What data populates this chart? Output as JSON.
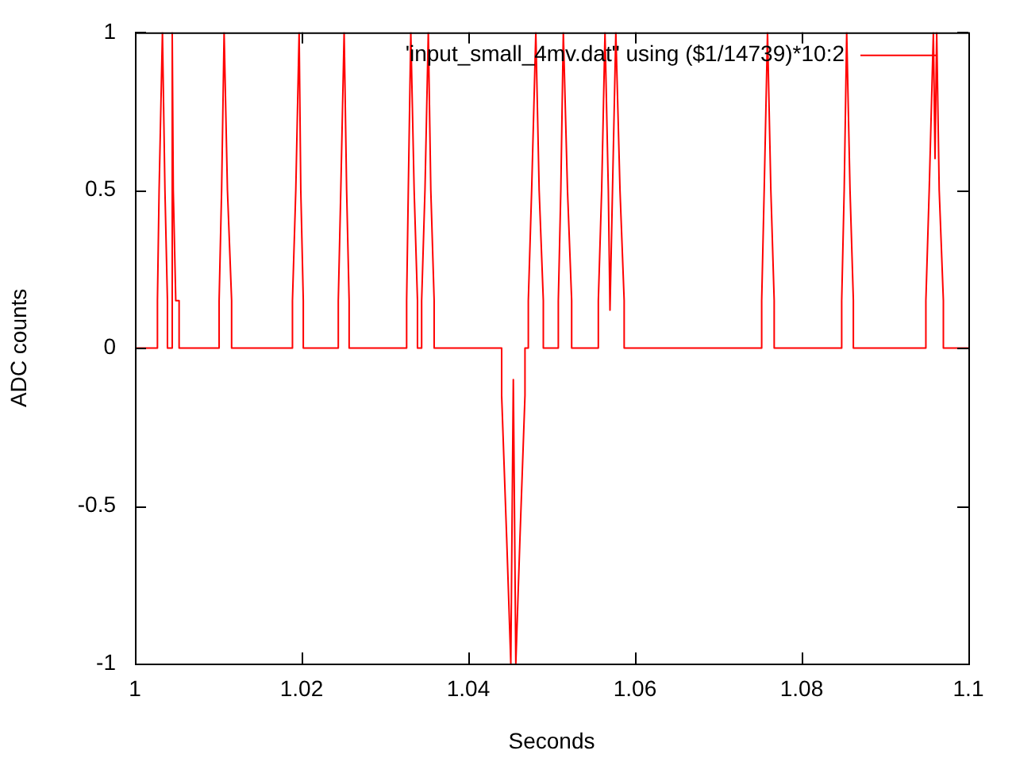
{
  "chart_data": {
    "type": "line",
    "xlabel": "Seconds",
    "ylabel": "ADC counts",
    "xlim": [
      1,
      1.1
    ],
    "xticks": [
      1,
      1.02,
      1.04,
      1.06,
      1.08,
      1.1
    ],
    "ylim": [
      -1,
      1
    ],
    "yticks": [
      -1,
      -0.5,
      0,
      0.5,
      1
    ],
    "grid": false,
    "legend": "top right",
    "marker": "none",
    "line_style": "solid",
    "series": [
      {
        "name": "'input_small_4mv.dat\" using ($1/14739)*10:2",
        "color": "#ff0000",
        "x": [
          1,
          1.0027,
          1.0027,
          1.0029,
          1.0033,
          1.0036,
          1.0039,
          1.0039,
          1.0044,
          1.00445,
          1.0045,
          1.0046,
          1.0049,
          1.0053,
          1.0053,
          1.0101,
          1.0101,
          1.0104,
          1.0107,
          1.0111,
          1.0116,
          1.0116,
          1.0189,
          1.0189,
          1.0193,
          1.0197,
          1.0199,
          1.0202,
          1.0202,
          1.0244,
          1.0244,
          1.0247,
          1.0251,
          1.0254,
          1.0257,
          1.0257,
          1.0326,
          1.0326,
          1.0328,
          1.0331,
          1.0335,
          1.0339,
          1.0339,
          1.0344,
          1.0344,
          1.0348,
          1.0352,
          1.0355,
          1.0359,
          1.0359,
          1.044,
          1.044,
          1.0446,
          1.0451,
          1.0454,
          1.0457,
          1.0462,
          1.0468,
          1.0468,
          1.0472,
          1.0472,
          1.0476,
          1.0481,
          1.0485,
          1.049,
          1.049,
          1.0508,
          1.0508,
          1.0511,
          1.0514,
          1.0519,
          1.0524,
          1.0524,
          1.0556,
          1.0556,
          1.056,
          1.0564,
          1.0568,
          1.057,
          1.0573,
          1.0577,
          1.0582,
          1.0587,
          1.0587,
          1.0752,
          1.0752,
          1.0755,
          1.0759,
          1.0763,
          1.0767,
          1.0767,
          1.0848,
          1.0848,
          1.0851,
          1.0854,
          1.0858,
          1.0862,
          1.0862,
          1.0949,
          1.0949,
          1.0953,
          1.0958,
          1.096,
          1.0962,
          1.0965,
          1.097,
          1.097,
          1.1
        ],
        "values": [
          0,
          0,
          0.15,
          0.5,
          1,
          0.5,
          0.15,
          0,
          0,
          0.15,
          1,
          0.5,
          0.15,
          0.15,
          0,
          0,
          0.15,
          0.5,
          1,
          0.5,
          0.15,
          0,
          0,
          0.15,
          0.5,
          1,
          0.5,
          0.15,
          0,
          0,
          0.15,
          0.5,
          1,
          0.5,
          0.15,
          0,
          0,
          0.15,
          0.5,
          1,
          0.5,
          0.15,
          0,
          0,
          0.15,
          0.5,
          1,
          0.5,
          0.15,
          0,
          0,
          -0.15,
          -0.6,
          -1,
          -0.1,
          -1,
          -0.6,
          -0.15,
          0,
          0,
          0.15,
          0.5,
          1,
          0.5,
          0.15,
          0,
          0,
          0.15,
          0.5,
          1,
          0.5,
          0.15,
          0,
          0,
          0.15,
          0.5,
          1,
          0.5,
          0.12,
          0.5,
          1,
          0.5,
          0.15,
          0,
          0,
          0.15,
          0.5,
          1,
          0.5,
          0.15,
          0,
          0,
          0.15,
          0.5,
          1,
          0.5,
          0.15,
          0,
          0,
          0.15,
          0.5,
          1,
          0.6,
          1,
          0.5,
          0.15,
          0,
          0
        ]
      }
    ]
  }
}
